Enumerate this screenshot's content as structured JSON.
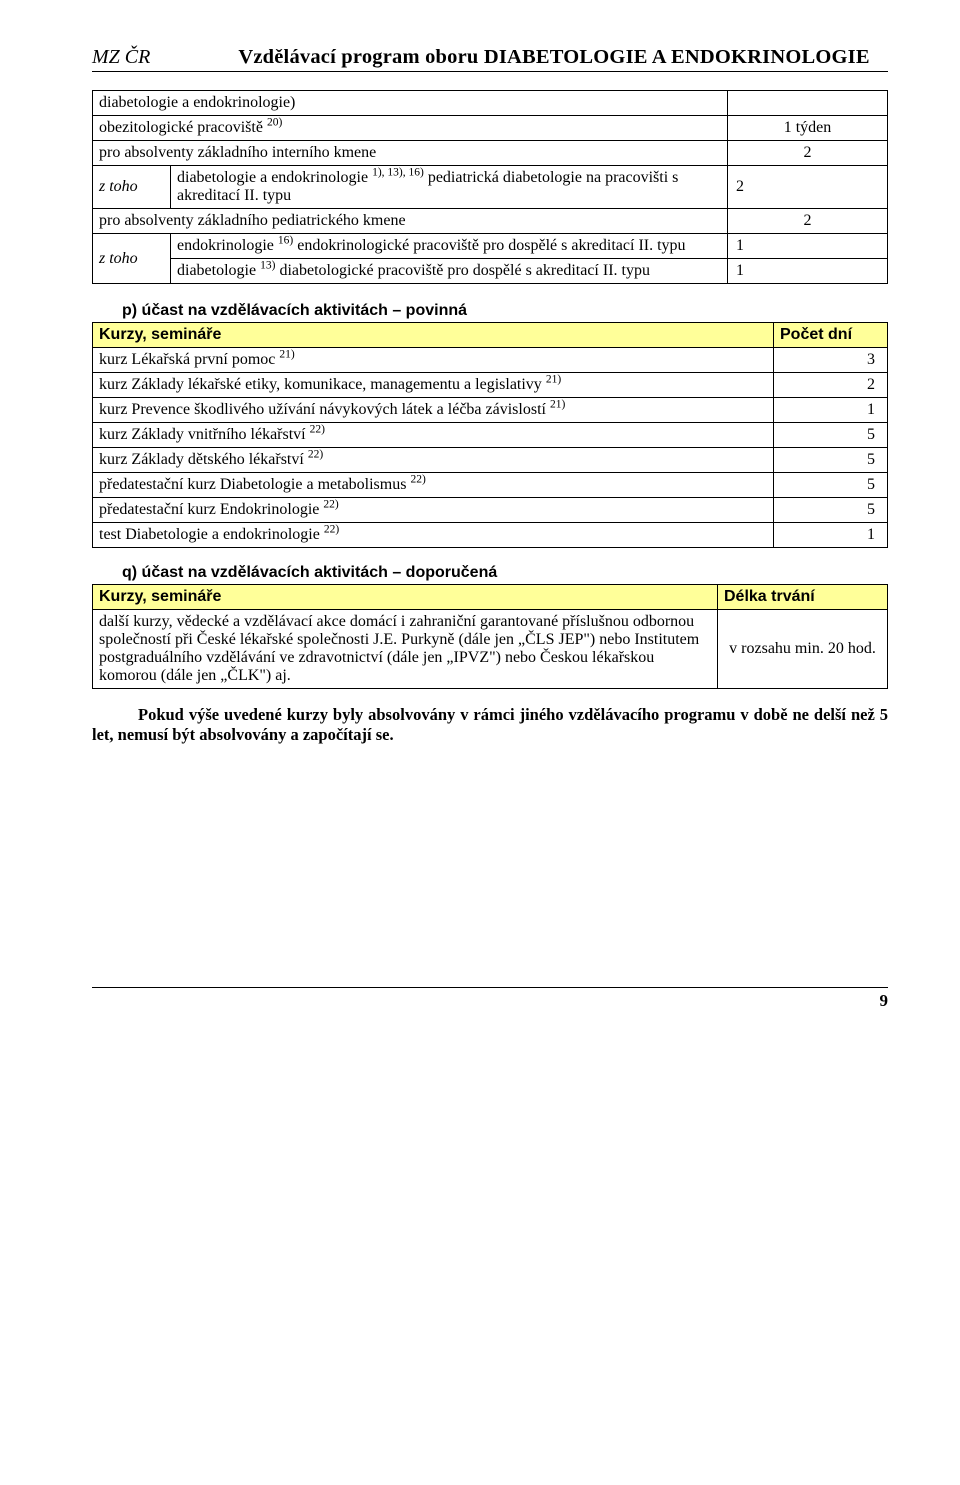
{
  "header": {
    "left": "MZ ČR",
    "title": "Vzdělávací program oboru DIABETOLOGIE A ENDOKRINOLOGIE"
  },
  "table1": {
    "rows": [
      {
        "label": "diabetologie a endokrinologie)",
        "value": ""
      },
      {
        "label_html": "obezitologické pracoviště <span class='sup'>20)</span>",
        "value": "1 týden"
      },
      {
        "label": "pro absolventy základního interního kmene",
        "value": "2",
        "colspan": 2
      },
      {
        "ztoho": "z toho",
        "label_html": "diabetologie a endokrinologie <span class='sup'>1), 13), 16)</span> pediatrická diabetologie na pracovišti s akreditací II. typu",
        "value": "2"
      },
      {
        "label": "pro absolventy základního pediatrického kmene",
        "value": "2",
        "colspan": 2
      },
      {
        "ztoho": "z toho",
        "sub": [
          {
            "label_html": "endokrinologie <span class='sup'>16)</span> endokrinologické pracoviště pro dospělé s akreditací II. typu",
            "value": "1"
          },
          {
            "label_html": "diabetologie <span class='sup'>13)</span> diabetologické pracoviště pro dospělé s akreditací II. typu",
            "value": "1"
          }
        ]
      }
    ]
  },
  "sectionP": {
    "label": "p) účast na vzdělávacích aktivitách – povinná",
    "head_left": "Kurzy, semináře",
    "head_right": "Počet dní",
    "rows": [
      {
        "label_html": "kurz Lékařská první pomoc <span class='sup'>21)</span>",
        "value": "3"
      },
      {
        "label_html": "kurz Základy lékařské etiky, komunikace, managementu a legislativy <span class='sup'>21)</span>",
        "value": "2"
      },
      {
        "label_html": "kurz Prevence škodlivého užívání návykových látek a léčba závislostí <span class='sup'>21)</span>",
        "value": "1"
      },
      {
        "label_html": "kurz Základy vnitřního lékařství <span class='sup'>22)</span>",
        "value": "5"
      },
      {
        "label_html": "kurz Základy dětského lékařství <span class='sup'>22)</span>",
        "value": "5"
      },
      {
        "label_html": "předatestační kurz Diabetologie a metabolismus <span class='sup'>22)</span>",
        "value": "5"
      },
      {
        "label_html": "předatestační kurz Endokrinologie <span class='sup'>22)</span>",
        "value": "5"
      },
      {
        "label_html": "test Diabetologie a endokrinologie <span class='sup'>22)</span>",
        "value": "1"
      }
    ]
  },
  "sectionQ": {
    "label": "q) účast na vzdělávacích aktivitách – doporučená",
    "head_left": "Kurzy, semináře",
    "head_right": "Délka trvání",
    "row_label": "další kurzy, vědecké a vzdělávací akce domácí i zahraniční garantované příslušnou odbornou společností při České lékařské společnosti J.E. Purkyně (dále jen „ČLS JEP\") nebo Institutem postgraduálního vzdělávání ve zdravotnictví (dále jen „IPVZ\") nebo Českou lékařskou komorou (dále jen „ČLK\") aj.",
    "row_value": "v rozsahu min. 20 hod."
  },
  "bottom_para": "Pokud výše uvedené kurzy byly absolvovány v rámci jiného vzdělávacího programu v době ne delší než 5 let, nemusí být absolvovány a započítají se.",
  "page_number": "9"
}
